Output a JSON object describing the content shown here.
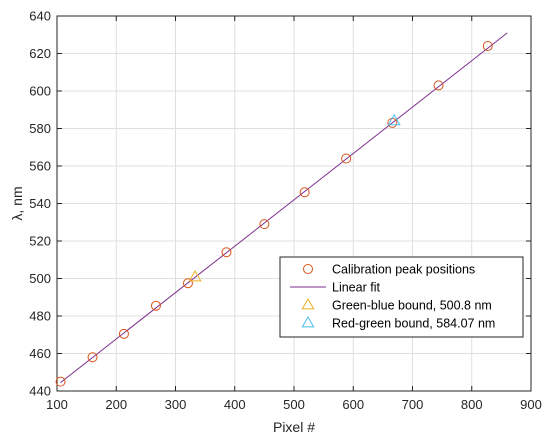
{
  "chart_data": {
    "type": "scatter",
    "title": "",
    "xlabel": "Pixel #",
    "ylabel": "λ, nm",
    "xlim": [
      100,
      900
    ],
    "ylim": [
      440,
      640
    ],
    "xticks": [
      100,
      200,
      300,
      400,
      500,
      600,
      700,
      800,
      900
    ],
    "yticks": [
      440,
      460,
      480,
      500,
      520,
      540,
      560,
      580,
      600,
      620,
      640
    ],
    "grid": true,
    "legend_position": "bottom-right",
    "series": [
      {
        "name": "Calibration peak positions",
        "kind": "scatter",
        "marker": "circle",
        "color": "#d95319",
        "points": [
          [
            106,
            445
          ],
          [
            160,
            458
          ],
          [
            213,
            470.5
          ],
          [
            267,
            485.5
          ],
          [
            321,
            497.5
          ],
          [
            386,
            514
          ],
          [
            450,
            529
          ],
          [
            518,
            546
          ],
          [
            588,
            564
          ],
          [
            666,
            583
          ],
          [
            744,
            603
          ],
          [
            827,
            624
          ]
        ]
      },
      {
        "name": "Linear fit",
        "kind": "line",
        "color": "#7e2f8e",
        "points": [
          [
            106,
            444.5
          ],
          [
            860,
            631
          ]
        ]
      },
      {
        "name": "Green-blue bound, 500.8 nm",
        "kind": "scatter",
        "marker": "triangle",
        "color": "#edb120",
        "points": [
          [
            333,
            500.8
          ]
        ]
      },
      {
        "name": "Red-green bound, 584.07 nm",
        "kind": "scatter",
        "marker": "triangle",
        "color": "#4dbeee",
        "points": [
          [
            669,
            584.07
          ]
        ]
      }
    ]
  }
}
